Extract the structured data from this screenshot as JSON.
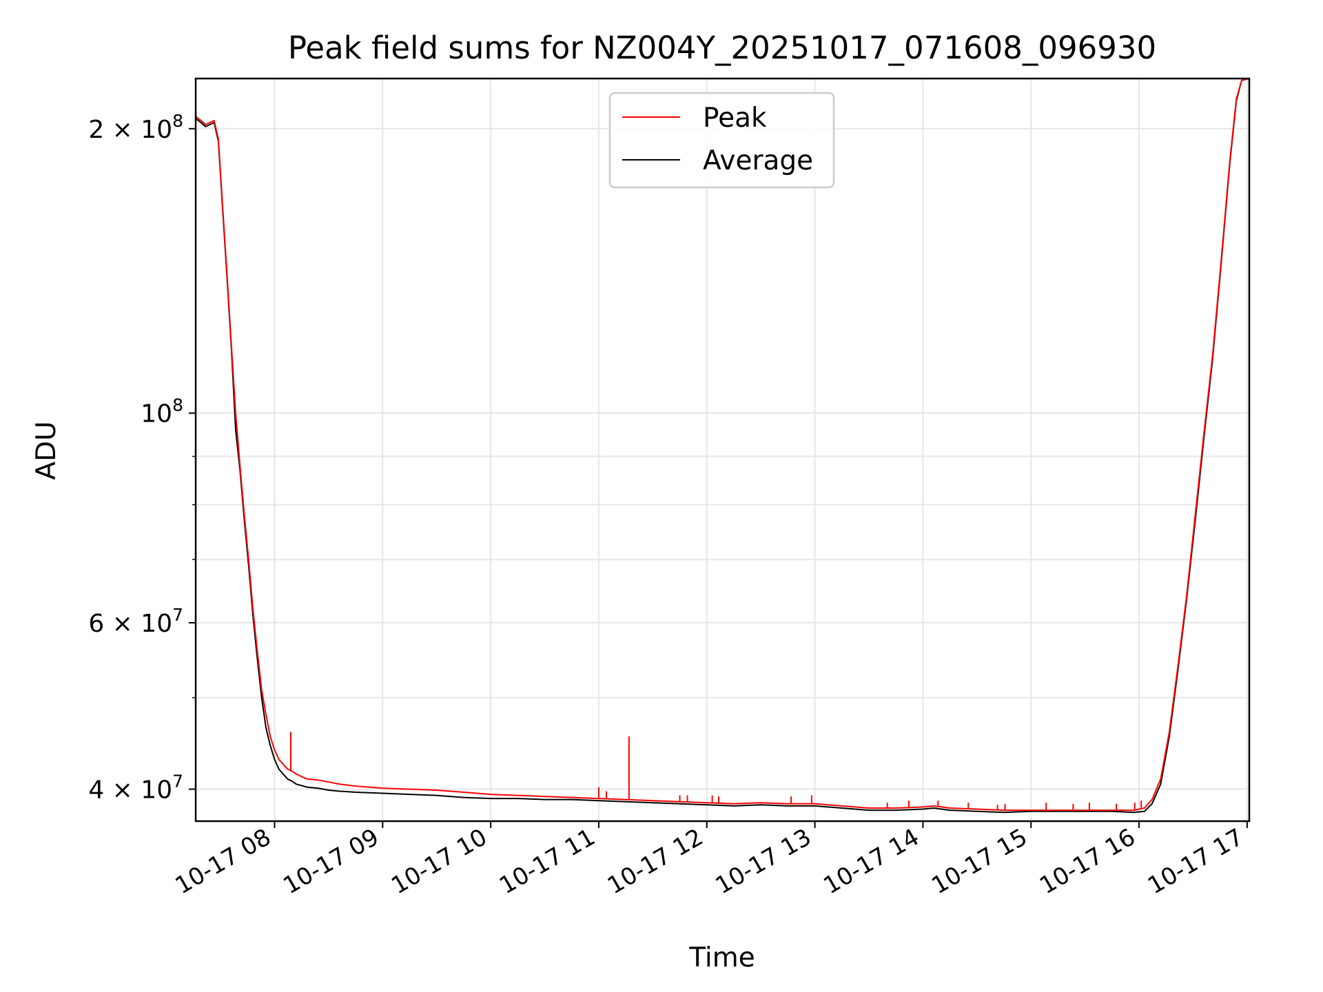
{
  "chart_data": {
    "type": "line",
    "title": "Peak field sums for NZ004Y_20251017_071608_096930",
    "xlabel": "Time",
    "ylabel": "ADU",
    "yscale": "log",
    "ylim": [
      37000000,
      226000000
    ],
    "xlim_hours": [
      7.27,
      17.02
    ],
    "x_tick_values_hours": [
      8,
      9,
      10,
      11,
      12,
      13,
      14,
      15,
      16,
      17
    ],
    "x_tick_labels": [
      "10-17 08",
      "10-17 09",
      "10-17 10",
      "10-17 11",
      "10-17 12",
      "10-17 13",
      "10-17 14",
      "10-17 15",
      "10-17 16",
      "10-17 17"
    ],
    "y_major_ticks": [
      {
        "value": 200000000,
        "base": "2 × 10",
        "exp": "8"
      },
      {
        "value": 100000000,
        "base": "10",
        "exp": "8"
      },
      {
        "value": 60000000,
        "base": "6 × 10",
        "exp": "7"
      },
      {
        "value": 40000000,
        "base": "4 × 10",
        "exp": "7"
      }
    ],
    "y_minor_gridlines": [
      30000000,
      50000000,
      70000000,
      80000000,
      90000000
    ],
    "grid": true,
    "legend_position": "top-center",
    "series": [
      {
        "name": "Peak",
        "color": "#ff0000",
        "x_hours": [
          7.27,
          7.32,
          7.36,
          7.4,
          7.44,
          7.48,
          7.52,
          7.56,
          7.6,
          7.64,
          7.68,
          7.72,
          7.76,
          7.8,
          7.84,
          7.88,
          7.92,
          7.96,
          8.0,
          8.04,
          8.08,
          8.12,
          8.16,
          8.2,
          8.3,
          8.4,
          8.5,
          8.6,
          8.75,
          9.0,
          9.25,
          9.5,
          9.75,
          10.0,
          10.25,
          10.5,
          10.75,
          11.0,
          11.25,
          11.5,
          11.75,
          12.0,
          12.25,
          12.5,
          12.75,
          13.0,
          13.25,
          13.5,
          13.75,
          14.0,
          14.1,
          14.25,
          14.5,
          14.75,
          15.0,
          15.25,
          15.5,
          15.75,
          15.95,
          16.05,
          16.12,
          16.2,
          16.28,
          16.36,
          16.44,
          16.52,
          16.6,
          16.68,
          16.76,
          16.84,
          16.9,
          16.95,
          17.02
        ],
        "y": [
          206000000,
          204000000,
          202000000,
          203000000,
          204000000,
          195000000,
          165000000,
          140000000,
          118000000,
          100000000,
          88000000,
          78000000,
          70000000,
          62000000,
          56000000,
          51000000,
          48000000,
          45500000,
          44000000,
          43000000,
          42500000,
          42000000,
          41800000,
          41500000,
          41000000,
          40900000,
          40700000,
          40500000,
          40300000,
          40100000,
          40000000,
          39900000,
          39700000,
          39500000,
          39400000,
          39300000,
          39200000,
          39100000,
          39000000,
          38900000,
          38800000,
          38700000,
          38600000,
          38700000,
          38600000,
          38600000,
          38400000,
          38200000,
          38200000,
          38300000,
          38400000,
          38200000,
          38100000,
          38000000,
          38000000,
          38000000,
          38000000,
          38000000,
          38000000,
          38200000,
          39000000,
          41000000,
          46000000,
          54000000,
          64000000,
          78000000,
          95000000,
          115000000,
          145000000,
          185000000,
          215000000,
          225000000,
          226000000
        ],
        "spikes": [
          {
            "x_hours": 8.15,
            "y": 46000000
          },
          {
            "x_hours": 11.28,
            "y": 45500000
          },
          {
            "x_hours": 11.0,
            "y": 40200000
          },
          {
            "x_hours": 11.07,
            "y": 39800000
          },
          {
            "x_hours": 11.75,
            "y": 39400000
          },
          {
            "x_hours": 11.82,
            "y": 39400000
          },
          {
            "x_hours": 12.05,
            "y": 39400000
          },
          {
            "x_hours": 12.11,
            "y": 39300000
          },
          {
            "x_hours": 12.78,
            "y": 39300000
          },
          {
            "x_hours": 12.97,
            "y": 39400000
          },
          {
            "x_hours": 13.67,
            "y": 38700000
          },
          {
            "x_hours": 13.87,
            "y": 38900000
          },
          {
            "x_hours": 14.14,
            "y": 38900000
          },
          {
            "x_hours": 14.42,
            "y": 38700000
          },
          {
            "x_hours": 14.69,
            "y": 38500000
          },
          {
            "x_hours": 14.76,
            "y": 38600000
          },
          {
            "x_hours": 15.14,
            "y": 38700000
          },
          {
            "x_hours": 15.39,
            "y": 38600000
          },
          {
            "x_hours": 15.54,
            "y": 38700000
          },
          {
            "x_hours": 15.79,
            "y": 38600000
          },
          {
            "x_hours": 15.96,
            "y": 38700000
          },
          {
            "x_hours": 16.02,
            "y": 38900000
          }
        ]
      },
      {
        "name": "Average",
        "color": "#000000",
        "x_hours": [
          7.27,
          7.32,
          7.36,
          7.4,
          7.44,
          7.48,
          7.52,
          7.56,
          7.6,
          7.64,
          7.68,
          7.72,
          7.76,
          7.8,
          7.84,
          7.88,
          7.92,
          7.96,
          8.0,
          8.04,
          8.08,
          8.12,
          8.16,
          8.2,
          8.3,
          8.4,
          8.5,
          8.6,
          8.75,
          9.0,
          9.25,
          9.5,
          9.75,
          10.0,
          10.25,
          10.5,
          10.75,
          11.0,
          11.25,
          11.5,
          11.75,
          12.0,
          12.25,
          12.5,
          12.75,
          13.0,
          13.25,
          13.5,
          13.75,
          14.0,
          14.1,
          14.25,
          14.5,
          14.75,
          15.0,
          15.25,
          15.5,
          15.75,
          15.95,
          16.05,
          16.12,
          16.2,
          16.28,
          16.36,
          16.44,
          16.52,
          16.6,
          16.68,
          16.76,
          16.84,
          16.9,
          16.95,
          17.02
        ],
        "y": [
          205000000,
          203000000,
          201000000,
          202000000,
          203000000,
          194000000,
          164000000,
          139000000,
          117000000,
          96000000,
          87000000,
          77000000,
          69000000,
          61000000,
          55000000,
          50000000,
          46500000,
          44500000,
          43000000,
          42000000,
          41500000,
          41000000,
          40800000,
          40500000,
          40200000,
          40100000,
          39900000,
          39800000,
          39700000,
          39600000,
          39500000,
          39400000,
          39200000,
          39100000,
          39100000,
          39000000,
          39000000,
          38900000,
          38800000,
          38700000,
          38600000,
          38500000,
          38400000,
          38500000,
          38400000,
          38400000,
          38200000,
          38000000,
          38000000,
          38100000,
          38200000,
          38000000,
          37900000,
          37800000,
          37900000,
          37900000,
          37900000,
          37900000,
          37800000,
          37900000,
          38600000,
          40500000,
          45500000,
          53500000,
          63500000,
          77000000,
          94000000,
          114000000,
          144000000,
          184000000,
          214000000,
          225000000,
          226000000
        ]
      }
    ]
  }
}
